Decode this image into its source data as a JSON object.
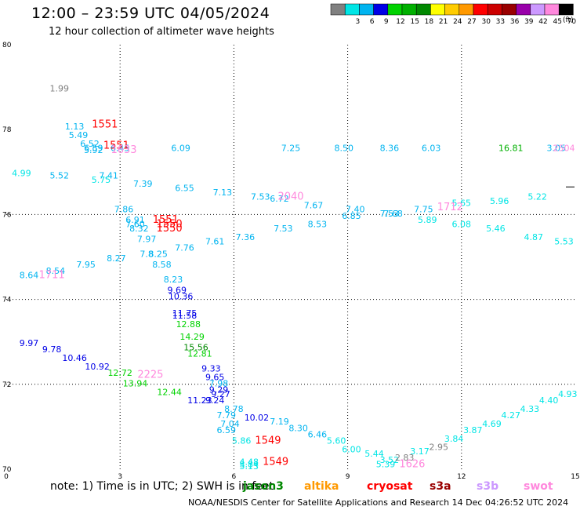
{
  "header": {
    "title": "12:00  –  23:59 UTC 04/05/2024",
    "subtitle": "12 hour collection of altimeter wave heights"
  },
  "colorbar": {
    "unit": "(ft)",
    "swatches": [
      {
        "color": "#808080",
        "label": ""
      },
      {
        "color": "#00e5e5",
        "label": "3"
      },
      {
        "color": "#00b4f0",
        "label": "6"
      },
      {
        "color": "#0000e6",
        "label": "9"
      },
      {
        "color": "#00d200",
        "label": "12"
      },
      {
        "color": "#00b000",
        "label": "15"
      },
      {
        "color": "#008800",
        "label": "18"
      },
      {
        "color": "#ffff00",
        "label": "21"
      },
      {
        "color": "#ffcc00",
        "label": "24"
      },
      {
        "color": "#ff9900",
        "label": "27"
      },
      {
        "color": "#ff0000",
        "label": "30"
      },
      {
        "color": "#cc0000",
        "label": "33"
      },
      {
        "color": "#990000",
        "label": "36"
      },
      {
        "color": "#9900aa",
        "label": "39"
      },
      {
        "color": "#cc99ff",
        "label": "42"
      },
      {
        "color": "#ff88dd",
        "label": "45"
      },
      {
        "color": "#000000",
        "label": "70"
      }
    ]
  },
  "footer": {
    "note": "note:  1) Time is in UTC; 2) SWH is in feet",
    "credit": "NOAA/NESDIS Center for Satellite Applications and Research    14 Dec 04:26:52 UTC 2024",
    "satellites": [
      {
        "name": "jason3",
        "color": "#008800"
      },
      {
        "name": "altika",
        "color": "#ff9900"
      },
      {
        "name": "cryosat",
        "color": "#ff0000"
      },
      {
        "name": "s3a",
        "color": "#990000"
      },
      {
        "name": "s3b",
        "color": "#cc99ff"
      },
      {
        "name": "swot",
        "color": "#ff88dd"
      }
    ]
  },
  "chart_data": {
    "type": "scatter",
    "title": "12:00  –  23:59 UTC 04/05/2024",
    "xlim": [
      0,
      15
    ],
    "ylim": [
      70,
      80
    ],
    "xticks": [
      "0",
      "3",
      "6",
      "9",
      "12",
      "15"
    ],
    "yticks": [
      "70",
      "72",
      "74",
      "76",
      "78",
      "80"
    ],
    "xgrid": [
      3,
      6,
      9,
      12
    ],
    "ygrid": [
      72,
      74,
      76
    ],
    "points": [
      {
        "x": 1.4,
        "y": 78.9,
        "t": "1.99",
        "c": "#808080"
      },
      {
        "x": 1.8,
        "y": 78.0,
        "t": "1.13",
        "c": "#00b4f0"
      },
      {
        "x": 1.9,
        "y": 77.8,
        "t": "5.49",
        "c": "#00b4f0"
      },
      {
        "x": 2.2,
        "y": 77.6,
        "t": "6.52",
        "c": "#00b4f0"
      },
      {
        "x": 2.3,
        "y": 77.5,
        "t": "6.59",
        "c": "#00b4f0"
      },
      {
        "x": 2.3,
        "y": 77.45,
        "t": "5.92",
        "c": "#00b4f0"
      },
      {
        "x": 3.0,
        "y": 77.5,
        "t": "6.45",
        "c": "#00b4f0"
      },
      {
        "x": 4.6,
        "y": 77.5,
        "t": "6.09",
        "c": "#00b4f0"
      },
      {
        "x": 7.5,
        "y": 77.5,
        "t": "7.25",
        "c": "#00b4f0"
      },
      {
        "x": 8.9,
        "y": 77.5,
        "t": "8.50",
        "c": "#00b4f0"
      },
      {
        "x": 10.1,
        "y": 77.5,
        "t": "8.36",
        "c": "#00b4f0"
      },
      {
        "x": 11.2,
        "y": 77.5,
        "t": "6.03",
        "c": "#00b4f0"
      },
      {
        "x": 13.3,
        "y": 77.5,
        "t": "16.81",
        "c": "#00b000"
      },
      {
        "x": 14.5,
        "y": 77.5,
        "t": "3.05",
        "c": "#00b4f0"
      },
      {
        "x": 0.4,
        "y": 76.9,
        "t": "4.99",
        "c": "#00e5e5"
      },
      {
        "x": 1.4,
        "y": 76.85,
        "t": "5.52",
        "c": "#00b4f0"
      },
      {
        "x": 2.7,
        "y": 76.85,
        "t": "7.41",
        "c": "#00b4f0"
      },
      {
        "x": 2.5,
        "y": 76.75,
        "t": "5.75",
        "c": "#00e5e5"
      },
      {
        "x": 3.6,
        "y": 76.65,
        "t": "7.39",
        "c": "#00b4f0"
      },
      {
        "x": 4.7,
        "y": 76.55,
        "t": "6.55",
        "c": "#00b4f0"
      },
      {
        "x": 5.7,
        "y": 76.45,
        "t": "7.13",
        "c": "#00b4f0"
      },
      {
        "x": 6.7,
        "y": 76.35,
        "t": "7.53",
        "c": "#00b4f0"
      },
      {
        "x": 7.2,
        "y": 76.3,
        "t": "6.72",
        "c": "#00b4f0"
      },
      {
        "x": 8.1,
        "y": 76.15,
        "t": "7.67",
        "c": "#00b4f0"
      },
      {
        "x": 9.2,
        "y": 76.05,
        "t": "7.40",
        "c": "#00b4f0"
      },
      {
        "x": 10.2,
        "y": 75.95,
        "t": "7.68",
        "c": "#00b4f0"
      },
      {
        "x": 10.1,
        "y": 75.95,
        "t": "7.53",
        "c": "#00b4f0"
      },
      {
        "x": 11.0,
        "y": 76.05,
        "t": "7.75",
        "c": "#00b4f0"
      },
      {
        "x": 11.1,
        "y": 75.8,
        "t": "5.89",
        "c": "#00e5e5"
      },
      {
        "x": 12.0,
        "y": 76.2,
        "t": "5.65",
        "c": "#00e5e5"
      },
      {
        "x": 13.0,
        "y": 76.25,
        "t": "5.96",
        "c": "#00e5e5"
      },
      {
        "x": 14.0,
        "y": 76.35,
        "t": "5.22",
        "c": "#00e5e5"
      },
      {
        "x": 3.1,
        "y": 76.05,
        "t": "7.86",
        "c": "#00b4f0"
      },
      {
        "x": 3.4,
        "y": 75.8,
        "t": "6.91",
        "c": "#00b4f0"
      },
      {
        "x": 3.4,
        "y": 75.7,
        "t": "7.60",
        "c": "#00b4f0"
      },
      {
        "x": 3.5,
        "y": 75.6,
        "t": "8.32",
        "c": "#00b4f0"
      },
      {
        "x": 3.7,
        "y": 75.35,
        "t": "7.97",
        "c": "#00b4f0"
      },
      {
        "x": 6.3,
        "y": 75.4,
        "t": "7.36",
        "c": "#00b4f0"
      },
      {
        "x": 7.3,
        "y": 75.6,
        "t": "7.53",
        "c": "#00b4f0"
      },
      {
        "x": 8.2,
        "y": 75.7,
        "t": "8.53",
        "c": "#00b4f0"
      },
      {
        "x": 9.1,
        "y": 75.9,
        "t": "6.85",
        "c": "#00b4f0"
      },
      {
        "x": 12.0,
        "y": 75.7,
        "t": "6.08",
        "c": "#00e5e5"
      },
      {
        "x": 12.9,
        "y": 75.6,
        "t": "5.46",
        "c": "#00e5e5"
      },
      {
        "x": 13.9,
        "y": 75.4,
        "t": "4.87",
        "c": "#00e5e5"
      },
      {
        "x": 14.7,
        "y": 75.3,
        "t": "5.53",
        "c": "#00e5e5"
      },
      {
        "x": 4.7,
        "y": 75.15,
        "t": "7.76",
        "c": "#00b4f0"
      },
      {
        "x": 5.5,
        "y": 75.3,
        "t": "7.61",
        "c": "#00b4f0"
      },
      {
        "x": 3.7,
        "y": 75.0,
        "t": "7.8",
        "c": "#00b4f0"
      },
      {
        "x": 4.0,
        "y": 75.0,
        "t": "8.25",
        "c": "#00b4f0"
      },
      {
        "x": 2.9,
        "y": 74.9,
        "t": "8.27",
        "c": "#00b4f0"
      },
      {
        "x": 4.1,
        "y": 74.75,
        "t": "8.58",
        "c": "#00b4f0"
      },
      {
        "x": 2.1,
        "y": 74.75,
        "t": "7.95",
        "c": "#00b4f0"
      },
      {
        "x": 1.3,
        "y": 74.6,
        "t": "8.54",
        "c": "#00b4f0"
      },
      {
        "x": 0.6,
        "y": 74.5,
        "t": "8.64",
        "c": "#00b4f0"
      },
      {
        "x": 4.4,
        "y": 74.4,
        "t": "8.23",
        "c": "#00b4f0"
      },
      {
        "x": 4.5,
        "y": 74.15,
        "t": "9.69",
        "c": "#0000e6"
      },
      {
        "x": 4.6,
        "y": 74.0,
        "t": "10.36",
        "c": "#0000e6"
      },
      {
        "x": 4.7,
        "y": 73.6,
        "t": "11.75",
        "c": "#0000e6"
      },
      {
        "x": 4.7,
        "y": 73.55,
        "t": "11.58",
        "c": "#0000e6"
      },
      {
        "x": 4.8,
        "y": 73.35,
        "t": "12.88",
        "c": "#00d200"
      },
      {
        "x": 4.9,
        "y": 73.05,
        "t": "14.29",
        "c": "#00d200"
      },
      {
        "x": 5.0,
        "y": 72.8,
        "t": "15.56",
        "c": "#008800"
      },
      {
        "x": 5.1,
        "y": 72.65,
        "t": "12.81",
        "c": "#00d200"
      },
      {
        "x": 0.6,
        "y": 72.9,
        "t": "9.97",
        "c": "#0000e6"
      },
      {
        "x": 1.2,
        "y": 72.75,
        "t": "9.78",
        "c": "#0000e6"
      },
      {
        "x": 1.8,
        "y": 72.55,
        "t": "10.46",
        "c": "#0000e6"
      },
      {
        "x": 2.4,
        "y": 72.35,
        "t": "10.92",
        "c": "#0000e6"
      },
      {
        "x": 3.0,
        "y": 72.2,
        "t": "12.72",
        "c": "#00d200"
      },
      {
        "x": 3.4,
        "y": 71.95,
        "t": "13.94",
        "c": "#00d200"
      },
      {
        "x": 4.3,
        "y": 71.75,
        "t": "12.44",
        "c": "#00d200"
      },
      {
        "x": 5.1,
        "y": 71.55,
        "t": "11.23",
        "c": "#0000e6"
      },
      {
        "x": 5.4,
        "y": 72.3,
        "t": "9.33",
        "c": "#0000e6"
      },
      {
        "x": 5.5,
        "y": 72.1,
        "t": "9.65",
        "c": "#0000e6"
      },
      {
        "x": 5.6,
        "y": 71.95,
        "t": "7.98",
        "c": "#00b4f0"
      },
      {
        "x": 5.6,
        "y": 71.8,
        "t": "9.29",
        "c": "#0000e6"
      },
      {
        "x": 5.65,
        "y": 71.7,
        "t": "9.27",
        "c": "#0000e6"
      },
      {
        "x": 5.5,
        "y": 71.55,
        "t": "9.24",
        "c": "#0000e6"
      },
      {
        "x": 6.0,
        "y": 71.35,
        "t": "8.78",
        "c": "#00b4f0"
      },
      {
        "x": 5.8,
        "y": 71.2,
        "t": "7.79",
        "c": "#00b4f0"
      },
      {
        "x": 6.6,
        "y": 71.15,
        "t": "10.02",
        "c": "#0000e6"
      },
      {
        "x": 5.9,
        "y": 71.0,
        "t": "7.04",
        "c": "#00b4f0"
      },
      {
        "x": 5.8,
        "y": 70.85,
        "t": "6.59",
        "c": "#00b4f0"
      },
      {
        "x": 7.2,
        "y": 71.05,
        "t": "7.19",
        "c": "#00b4f0"
      },
      {
        "x": 7.7,
        "y": 70.9,
        "t": "8.30",
        "c": "#00b4f0"
      },
      {
        "x": 8.2,
        "y": 70.75,
        "t": "6.46",
        "c": "#00b4f0"
      },
      {
        "x": 8.7,
        "y": 70.6,
        "t": "5.60",
        "c": "#00e5e5"
      },
      {
        "x": 6.2,
        "y": 70.6,
        "t": "5.86",
        "c": "#00e5e5"
      },
      {
        "x": 9.1,
        "y": 70.4,
        "t": "6.00",
        "c": "#00e5e5"
      },
      {
        "x": 9.7,
        "y": 70.3,
        "t": "5.44",
        "c": "#00e5e5"
      },
      {
        "x": 10.1,
        "y": 70.15,
        "t": "3.52",
        "c": "#00e5e5"
      },
      {
        "x": 10.5,
        "y": 70.2,
        "t": "2.83",
        "c": "#808080"
      },
      {
        "x": 10.9,
        "y": 70.35,
        "t": "3.17",
        "c": "#00e5e5"
      },
      {
        "x": 11.4,
        "y": 70.45,
        "t": "2.95",
        "c": "#808080"
      },
      {
        "x": 11.8,
        "y": 70.65,
        "t": "3.84",
        "c": "#00e5e5"
      },
      {
        "x": 12.3,
        "y": 70.85,
        "t": "3.87",
        "c": "#00e5e5"
      },
      {
        "x": 12.8,
        "y": 71.0,
        "t": "4.69",
        "c": "#00e5e5"
      },
      {
        "x": 13.3,
        "y": 71.2,
        "t": "4.27",
        "c": "#00e5e5"
      },
      {
        "x": 13.8,
        "y": 71.35,
        "t": "4.33",
        "c": "#00e5e5"
      },
      {
        "x": 14.3,
        "y": 71.55,
        "t": "4.40",
        "c": "#00e5e5"
      },
      {
        "x": 14.8,
        "y": 71.7,
        "t": "4.93",
        "c": "#00e5e5"
      },
      {
        "x": 10.0,
        "y": 70.05,
        "t": "5.39",
        "c": "#00e5e5"
      },
      {
        "x": 6.4,
        "y": 70.1,
        "t": "4.48",
        "c": "#00e5e5"
      },
      {
        "x": 6.4,
        "y": 70.05,
        "t": "3.84",
        "c": "#00e5e5"
      },
      {
        "x": 6.4,
        "y": 70.0,
        "t": "5.13",
        "c": "#00e5e5"
      },
      {
        "x": 2.6,
        "y": 78.05,
        "t": "1551",
        "c": "#ff0000",
        "big": true
      },
      {
        "x": 2.9,
        "y": 77.55,
        "t": "1551",
        "c": "#ff0000",
        "big": true
      },
      {
        "x": 3.1,
        "y": 77.45,
        "t": "1633",
        "c": "#ff88dd",
        "big": true
      },
      {
        "x": 4.2,
        "y": 75.8,
        "t": "1551",
        "c": "#ff0000",
        "big": true
      },
      {
        "x": 4.3,
        "y": 75.7,
        "t": "1550",
        "c": "#ff0000",
        "big": true
      },
      {
        "x": 4.3,
        "y": 75.6,
        "t": "1550",
        "c": "#ff0000",
        "big": true
      },
      {
        "x": 7.5,
        "y": 76.35,
        "t": "2040",
        "c": "#ff88dd",
        "big": true
      },
      {
        "x": 11.7,
        "y": 76.1,
        "t": "1712",
        "c": "#ff88dd",
        "big": true
      },
      {
        "x": 1.2,
        "y": 74.5,
        "t": "1711",
        "c": "#ff88dd",
        "big": true
      },
      {
        "x": 3.8,
        "y": 72.15,
        "t": "2225",
        "c": "#ff88dd",
        "big": true
      },
      {
        "x": 6.9,
        "y": 70.6,
        "t": "1549",
        "c": "#ff0000",
        "big": true
      },
      {
        "x": 7.1,
        "y": 70.1,
        "t": "1549",
        "c": "#ff0000",
        "big": true
      },
      {
        "x": 10.7,
        "y": 70.05,
        "t": "1626",
        "c": "#ff88dd",
        "big": true
      },
      {
        "x": 14.7,
        "y": 77.5,
        "t": "2504",
        "c": "#ff88dd",
        "big": false
      }
    ]
  }
}
